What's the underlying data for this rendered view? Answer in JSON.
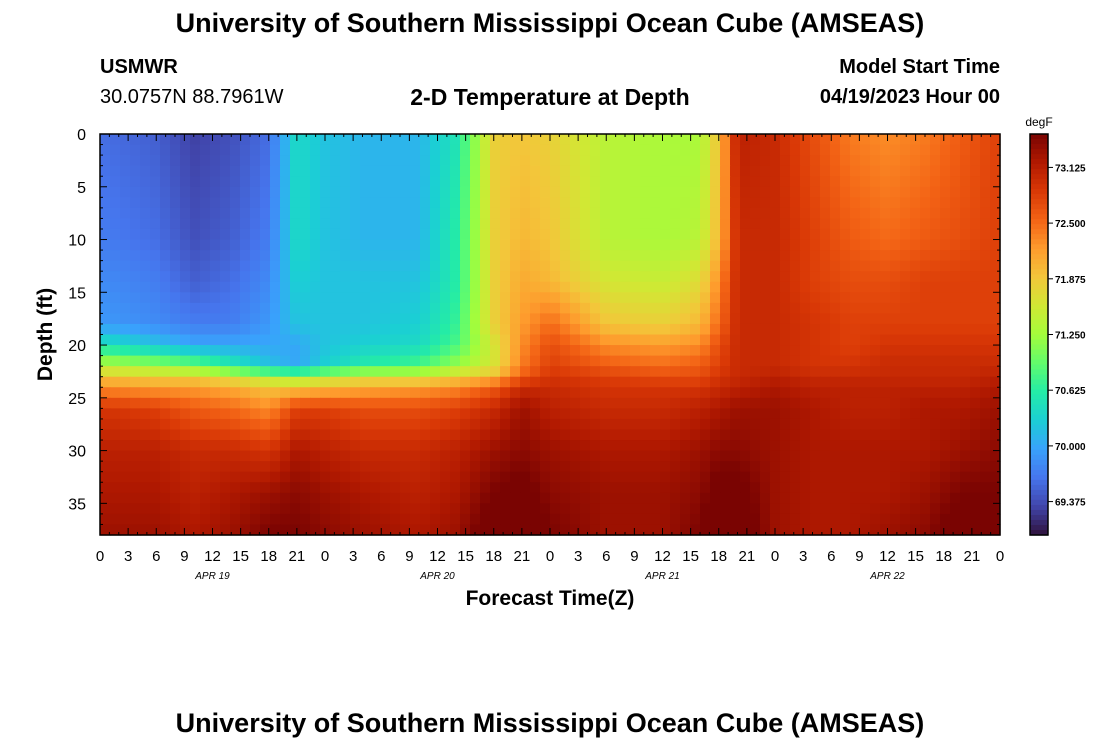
{
  "header": {
    "title": "University of Southern Mississippi Ocean Cube (AMSEAS)",
    "station": "USMWR",
    "coordinates": "30.0757N  88.7961W",
    "subtitle": "2-D Temperature at Depth",
    "model_start_label": "Model Start Time",
    "model_start_value": "04/19/2023 Hour 00"
  },
  "footer": {
    "title": "University of Southern Mississippi Ocean Cube (AMSEAS)"
  },
  "colors": {
    "colormap": [
      "#30123b",
      "#4145ab",
      "#4675ed",
      "#39a2fc",
      "#1bcfd4",
      "#24eca6",
      "#61fc6c",
      "#a4fc3b",
      "#d1e834",
      "#f3c63a",
      "#fe9b2d",
      "#f36315",
      "#d93806",
      "#b11901",
      "#7a0402"
    ]
  },
  "chart_data": {
    "type": "heatmap",
    "title": "2-D Temperature at Depth",
    "xlabel": "Forecast Time(Z)",
    "ylabel": "Depth (ft)",
    "x_hours": [
      0,
      96
    ],
    "x_tick_labels": [
      "0",
      "3",
      "6",
      "9",
      "12",
      "15",
      "18",
      "21",
      "0",
      "3",
      "6",
      "9",
      "12",
      "15",
      "18",
      "21",
      "0",
      "3",
      "6",
      "9",
      "12",
      "15",
      "18",
      "21",
      "0",
      "3",
      "6",
      "9",
      "12",
      "15",
      "18",
      "21",
      "0"
    ],
    "date_labels": [
      "APR 19",
      "APR 20",
      "APR 21",
      "APR 22"
    ],
    "y_ticks": [
      0,
      5,
      10,
      15,
      20,
      25,
      30,
      35
    ],
    "ylim": [
      0,
      38
    ],
    "colorbar": {
      "unit": "degF",
      "ticks": [
        "73.125",
        "72.500",
        "71.875",
        "71.250",
        "70.625",
        "70.000",
        "69.375"
      ],
      "range": [
        69.0,
        73.5
      ]
    },
    "profile_times_hr": [
      0,
      6,
      10,
      14,
      18,
      21,
      24,
      28,
      34,
      38,
      42,
      45,
      48,
      54,
      60,
      64,
      66,
      68,
      72,
      76,
      80,
      84,
      88,
      92,
      96
    ],
    "layer_depths_ft": [
      0,
      10,
      14,
      18,
      20,
      22,
      23,
      24,
      26,
      30,
      34,
      38
    ],
    "temperature_grid_degF": [
      [
        69.6,
        69.5,
        69.3,
        69.4,
        69.6,
        70.4,
        70.2,
        70.1,
        70.1,
        70.5,
        71.8,
        71.9,
        71.8,
        71.4,
        71.3,
        71.3,
        71.9,
        73.1,
        73.0,
        72.7,
        72.4,
        72.3,
        72.4,
        72.6,
        72.8
      ],
      [
        69.7,
        69.6,
        69.4,
        69.5,
        69.7,
        70.4,
        70.2,
        70.1,
        70.1,
        70.6,
        71.8,
        72.0,
        71.9,
        71.4,
        71.3,
        71.4,
        72.0,
        73.0,
        73.0,
        72.8,
        72.6,
        72.5,
        72.6,
        72.7,
        72.8
      ],
      [
        69.8,
        69.7,
        69.5,
        69.6,
        69.8,
        70.3,
        70.2,
        70.2,
        70.2,
        70.6,
        71.8,
        72.1,
        72.0,
        71.6,
        71.5,
        71.7,
        72.3,
        73.0,
        73.0,
        72.8,
        72.7,
        72.7,
        72.8,
        72.8,
        72.8
      ],
      [
        69.9,
        69.8,
        69.7,
        69.7,
        69.9,
        70.2,
        70.2,
        70.2,
        70.3,
        70.7,
        71.8,
        72.2,
        72.5,
        71.9,
        71.8,
        72.0,
        72.5,
        73.0,
        73.0,
        72.9,
        72.8,
        72.8,
        72.8,
        72.8,
        72.8
      ],
      [
        70.5,
        70.2,
        70.0,
        70.0,
        70.0,
        70.0,
        70.2,
        70.3,
        70.4,
        70.8,
        71.6,
        72.3,
        72.7,
        72.3,
        72.2,
        72.3,
        72.7,
        73.0,
        73.0,
        72.9,
        72.8,
        72.9,
        72.9,
        72.9,
        72.9
      ],
      [
        71.4,
        71.2,
        71.0,
        70.6,
        70.2,
        70.0,
        70.3,
        70.6,
        70.8,
        71.2,
        71.6,
        72.4,
        72.8,
        72.6,
        72.5,
        72.6,
        72.8,
        73.0,
        73.0,
        72.9,
        72.9,
        73.0,
        73.0,
        73.0,
        73.0
      ],
      [
        71.9,
        71.8,
        71.8,
        71.6,
        71.3,
        71.2,
        71.4,
        71.6,
        71.6,
        71.8,
        72.0,
        72.6,
        72.9,
        72.8,
        72.7,
        72.7,
        72.9,
        73.0,
        73.1,
        73.0,
        73.0,
        73.0,
        73.0,
        73.0,
        73.1
      ],
      [
        72.3,
        72.2,
        72.2,
        72.1,
        71.9,
        71.9,
        72.0,
        72.1,
        72.2,
        72.3,
        72.6,
        73.0,
        73.0,
        72.9,
        72.9,
        72.9,
        73.0,
        73.1,
        73.2,
        73.1,
        73.1,
        73.1,
        73.1,
        73.1,
        73.2
      ],
      [
        72.9,
        72.8,
        72.6,
        72.5,
        72.3,
        72.8,
        72.8,
        72.7,
        72.7,
        72.8,
        73.0,
        73.3,
        73.1,
        73.0,
        73.0,
        73.1,
        73.2,
        73.3,
        73.3,
        73.2,
        73.1,
        73.1,
        73.2,
        73.2,
        73.3
      ],
      [
        73.1,
        73.1,
        73.0,
        73.0,
        72.9,
        73.2,
        73.1,
        73.0,
        73.0,
        73.1,
        73.3,
        73.4,
        73.3,
        73.2,
        73.2,
        73.3,
        73.4,
        73.4,
        73.3,
        73.2,
        73.2,
        73.2,
        73.2,
        73.3,
        73.4
      ],
      [
        73.2,
        73.2,
        73.1,
        73.2,
        73.3,
        73.4,
        73.3,
        73.2,
        73.1,
        73.2,
        73.5,
        73.6,
        73.4,
        73.3,
        73.3,
        73.4,
        73.6,
        73.6,
        73.3,
        73.2,
        73.2,
        73.2,
        73.3,
        73.5,
        73.5
      ],
      [
        73.3,
        73.3,
        73.2,
        73.3,
        73.5,
        73.5,
        73.4,
        73.3,
        73.2,
        73.3,
        73.7,
        73.8,
        73.5,
        73.3,
        73.3,
        73.5,
        73.8,
        73.7,
        73.3,
        73.2,
        73.2,
        73.3,
        73.4,
        73.7,
        73.5
      ]
    ]
  },
  "labels": {
    "colorbar_unit": "degF"
  }
}
